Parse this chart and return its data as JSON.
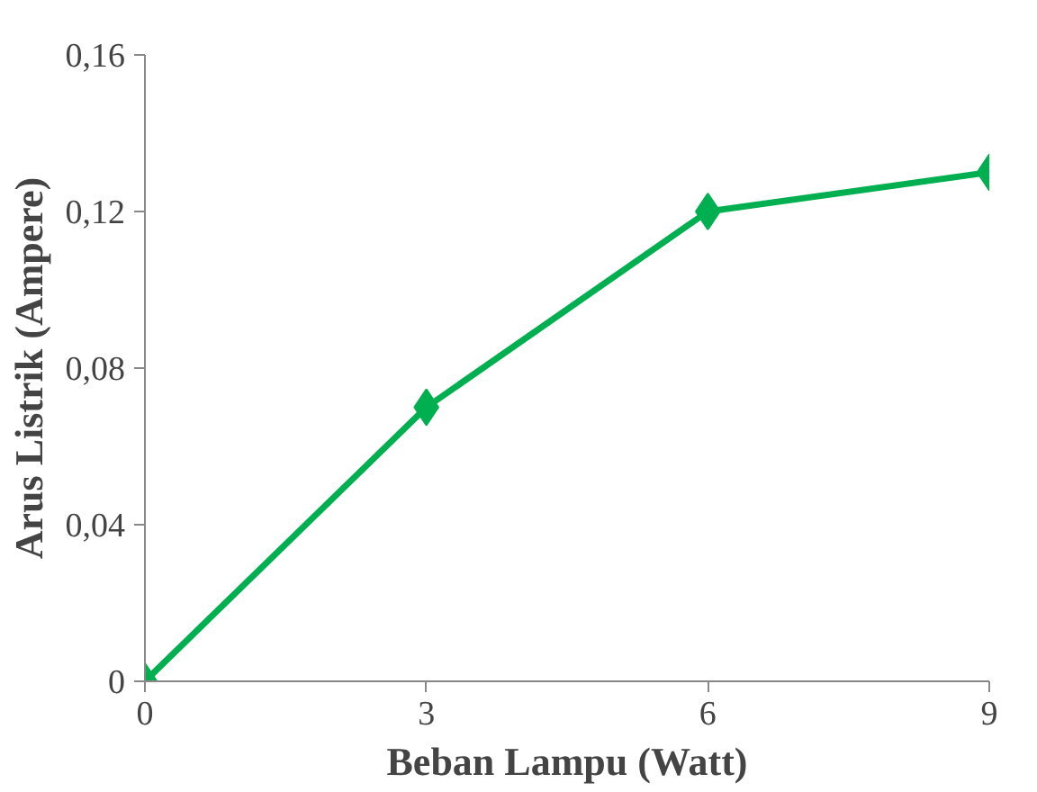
{
  "chart_data": {
    "type": "line",
    "xlabel": "Beban Lampu (Watt)",
    "ylabel": "Arus Listrik (Ampere)",
    "x": [
      0,
      3,
      6,
      9
    ],
    "series": [
      {
        "color": "#00b050",
        "values": [
          0,
          0.07,
          0.12,
          0.13
        ]
      }
    ],
    "xlim": [
      0,
      9
    ],
    "ylim": [
      0,
      0.16
    ],
    "xticks": [
      0,
      3,
      6,
      9
    ],
    "yticks": [
      0,
      {
        "value": 0.04,
        "label": "0,04"
      },
      {
        "value": 0.08,
        "label": "0,08"
      },
      {
        "value": 0.12,
        "label": "0,12"
      },
      {
        "value": 0.16,
        "label": "0,16"
      }
    ],
    "marker": "diamond",
    "line_style": "solid"
  }
}
